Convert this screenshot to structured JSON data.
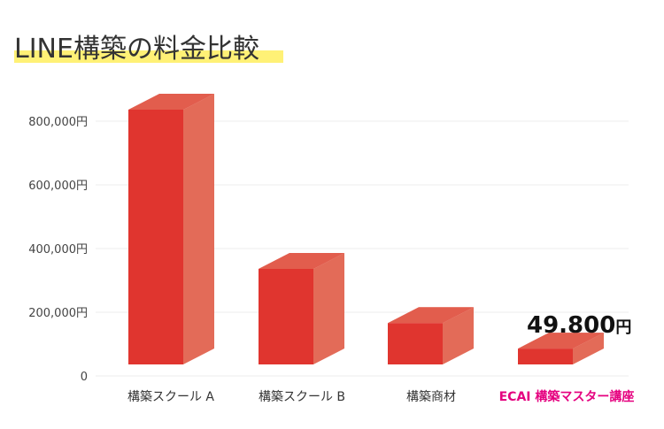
{
  "chart_data": {
    "type": "bar",
    "title": "LINE構築の料金比較",
    "categories": [
      "構築スクール A",
      "構築スクール B",
      "構築商材",
      "ECAI 構築マスター講座"
    ],
    "values": [
      800000,
      300000,
      130000,
      49800
    ],
    "ylim": [
      0,
      800000
    ],
    "yticks": [
      0,
      200000,
      400000,
      600000,
      800000
    ],
    "ytick_labels": [
      "0",
      "200,000円",
      "400,000円",
      "600,000円",
      "800,000円"
    ],
    "value_label": {
      "number": "49.800",
      "unit": "円"
    },
    "grid": true,
    "colors": {
      "front": "#e0352f",
      "side": "#e36b58",
      "top": "#e0352f",
      "inner": "#e3735f",
      "highlight_label": "#e5007f",
      "title_highlight": "#fff176",
      "grid": "#eeeeee"
    }
  }
}
